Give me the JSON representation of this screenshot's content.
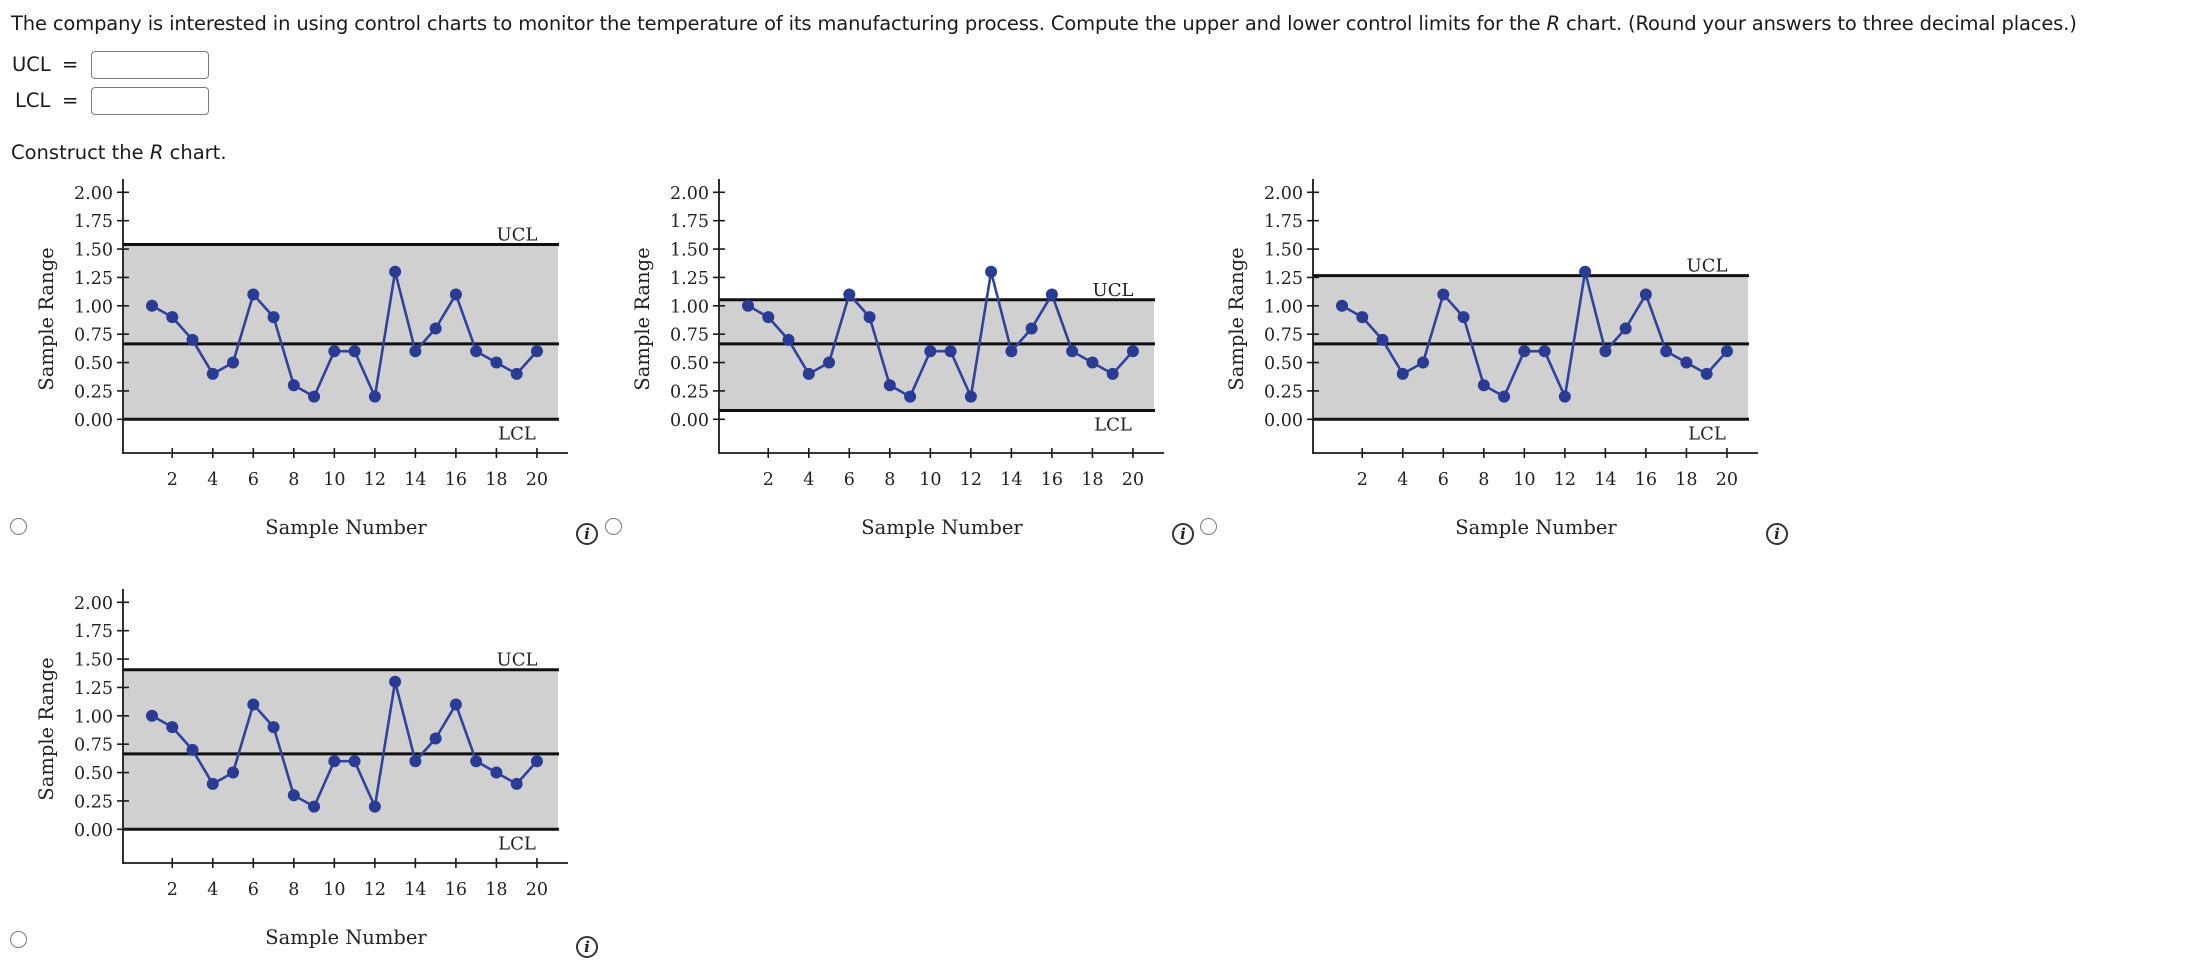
{
  "question": {
    "text_before": "The company is interested in using control charts to monitor the temperature of its manufacturing process. Compute the upper and lower control limits for the ",
    "italic_var": "R",
    "text_after": " chart. (Round your answers to three decimal places.)"
  },
  "inputs": {
    "ucl": {
      "label": "UCL",
      "equals": "=",
      "value": ""
    },
    "lcl": {
      "label": "LCL",
      "equals": "=",
      "value": ""
    }
  },
  "construct": {
    "before": "Construct the ",
    "italic_var": "R",
    "after": " chart."
  },
  "colors": {
    "shade": "#d0d0d0",
    "series": "#2e429e",
    "dot": "#2a3b94",
    "axis": "#1a1a1a",
    "limit_line": "#111111"
  },
  "chart_data": [
    {
      "type": "line",
      "option": 1,
      "title": "",
      "xlabel": "Sample Number",
      "ylabel": "Sample Range",
      "x": [
        1,
        2,
        3,
        4,
        5,
        6,
        7,
        8,
        9,
        10,
        11,
        12,
        13,
        14,
        15,
        16,
        17,
        18,
        19,
        20
      ],
      "values": [
        1.0,
        0.9,
        0.7,
        0.4,
        0.5,
        1.1,
        0.9,
        0.3,
        0.2,
        0.6,
        0.6,
        0.2,
        1.3,
        0.6,
        0.8,
        1.1,
        0.6,
        0.5,
        0.4,
        0.6
      ],
      "x_ticks": [
        2,
        4,
        6,
        8,
        10,
        12,
        14,
        16,
        18,
        20
      ],
      "y_ticks": [
        "0.00",
        "0.25",
        "0.50",
        "0.75",
        "1.00",
        "1.25",
        "1.50",
        "1.75",
        "2.00"
      ],
      "ylim": [
        0,
        2.0
      ],
      "center_line": 0.665,
      "ucl": 1.54,
      "lcl": 0.0,
      "ucl_label": "UCL",
      "lcl_label": "LCL",
      "grid": false
    },
    {
      "type": "line",
      "option": 2,
      "title": "",
      "xlabel": "Sample Number",
      "ylabel": "Sample Range",
      "x": [
        1,
        2,
        3,
        4,
        5,
        6,
        7,
        8,
        9,
        10,
        11,
        12,
        13,
        14,
        15,
        16,
        17,
        18,
        19,
        20
      ],
      "values": [
        1.0,
        0.9,
        0.7,
        0.4,
        0.5,
        1.1,
        0.9,
        0.3,
        0.2,
        0.6,
        0.6,
        0.2,
        1.3,
        0.6,
        0.8,
        1.1,
        0.6,
        0.5,
        0.4,
        0.6
      ],
      "x_ticks": [
        2,
        4,
        6,
        8,
        10,
        12,
        14,
        16,
        18,
        20
      ],
      "y_ticks": [
        "0.00",
        "0.25",
        "0.50",
        "0.75",
        "1.00",
        "1.25",
        "1.50",
        "1.75",
        "2.00"
      ],
      "ylim": [
        0,
        2.0
      ],
      "center_line": 0.665,
      "ucl": 1.053,
      "lcl": 0.077,
      "ucl_label": "UCL",
      "lcl_label": "LCL",
      "grid": false
    },
    {
      "type": "line",
      "option": 3,
      "title": "",
      "xlabel": "Sample Number",
      "ylabel": "Sample Range",
      "x": [
        1,
        2,
        3,
        4,
        5,
        6,
        7,
        8,
        9,
        10,
        11,
        12,
        13,
        14,
        15,
        16,
        17,
        18,
        19,
        20
      ],
      "values": [
        1.0,
        0.9,
        0.7,
        0.4,
        0.5,
        1.1,
        0.9,
        0.3,
        0.2,
        0.6,
        0.6,
        0.2,
        1.3,
        0.6,
        0.8,
        1.1,
        0.6,
        0.5,
        0.4,
        0.6
      ],
      "x_ticks": [
        2,
        4,
        6,
        8,
        10,
        12,
        14,
        16,
        18,
        20
      ],
      "y_ticks": [
        "0.00",
        "0.25",
        "0.50",
        "0.75",
        "1.00",
        "1.25",
        "1.50",
        "1.75",
        "2.00"
      ],
      "ylim": [
        0,
        2.0
      ],
      "center_line": 0.665,
      "ucl": 1.266,
      "lcl": 0.0,
      "ucl_label": "UCL",
      "lcl_label": "LCL",
      "grid": false
    },
    {
      "type": "line",
      "option": 4,
      "title": "",
      "xlabel": "Sample Number",
      "ylabel": "Sample Range",
      "x": [
        1,
        2,
        3,
        4,
        5,
        6,
        7,
        8,
        9,
        10,
        11,
        12,
        13,
        14,
        15,
        16,
        17,
        18,
        19,
        20
      ],
      "values": [
        1.0,
        0.9,
        0.7,
        0.4,
        0.5,
        1.1,
        0.9,
        0.3,
        0.2,
        0.6,
        0.6,
        0.2,
        1.3,
        0.6,
        0.8,
        1.1,
        0.6,
        0.5,
        0.4,
        0.6
      ],
      "x_ticks": [
        2,
        4,
        6,
        8,
        10,
        12,
        14,
        16,
        18,
        20
      ],
      "y_ticks": [
        "0.00",
        "0.25",
        "0.50",
        "0.75",
        "1.00",
        "1.25",
        "1.50",
        "1.75",
        "2.00"
      ],
      "ylim": [
        0,
        2.0
      ],
      "center_line": 0.665,
      "ucl": 1.406,
      "lcl": 0.0,
      "ucl_label": "UCL",
      "lcl_label": "LCL",
      "grid": false
    }
  ],
  "options": [
    {
      "selected": false,
      "info_icon": "info-icon"
    },
    {
      "selected": false,
      "info_icon": "info-icon"
    },
    {
      "selected": false,
      "info_icon": "info-icon"
    },
    {
      "selected": false,
      "info_icon": "info-icon"
    }
  ],
  "info_glyph": "i"
}
